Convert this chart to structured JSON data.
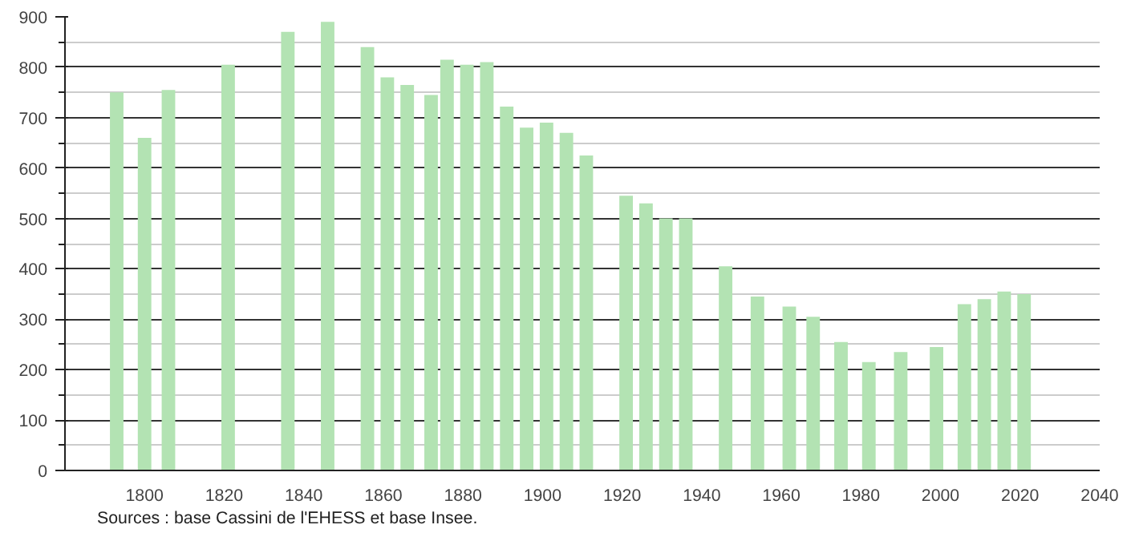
{
  "chart_data": {
    "type": "bar",
    "x": [
      1793,
      1800,
      1806,
      1821,
      1836,
      1846,
      1856,
      1861,
      1866,
      1872,
      1876,
      1881,
      1886,
      1891,
      1896,
      1901,
      1906,
      1911,
      1921,
      1926,
      1931,
      1936,
      1946,
      1954,
      1962,
      1968,
      1975,
      1982,
      1990,
      1999,
      2006,
      2011,
      2016,
      2021
    ],
    "values": [
      750,
      660,
      755,
      805,
      870,
      890,
      840,
      780,
      765,
      745,
      815,
      805,
      810,
      722,
      680,
      690,
      670,
      625,
      545,
      530,
      500,
      500,
      405,
      345,
      325,
      305,
      255,
      215,
      235,
      245,
      330,
      340,
      355,
      350
    ],
    "color": "#b3e3b3",
    "xlim": [
      1780,
      2040
    ],
    "xticks": [
      1800,
      1820,
      1840,
      1860,
      1880,
      1900,
      1920,
      1940,
      1960,
      1980,
      2000,
      2020,
      2040
    ],
    "ylim": [
      0,
      900
    ],
    "yticks": [
      0,
      100,
      200,
      300,
      400,
      500,
      600,
      700,
      800,
      900
    ],
    "grid": "y",
    "annotations": [
      "Sources : base Cassini de l'EHESS et base Insee."
    ]
  }
}
